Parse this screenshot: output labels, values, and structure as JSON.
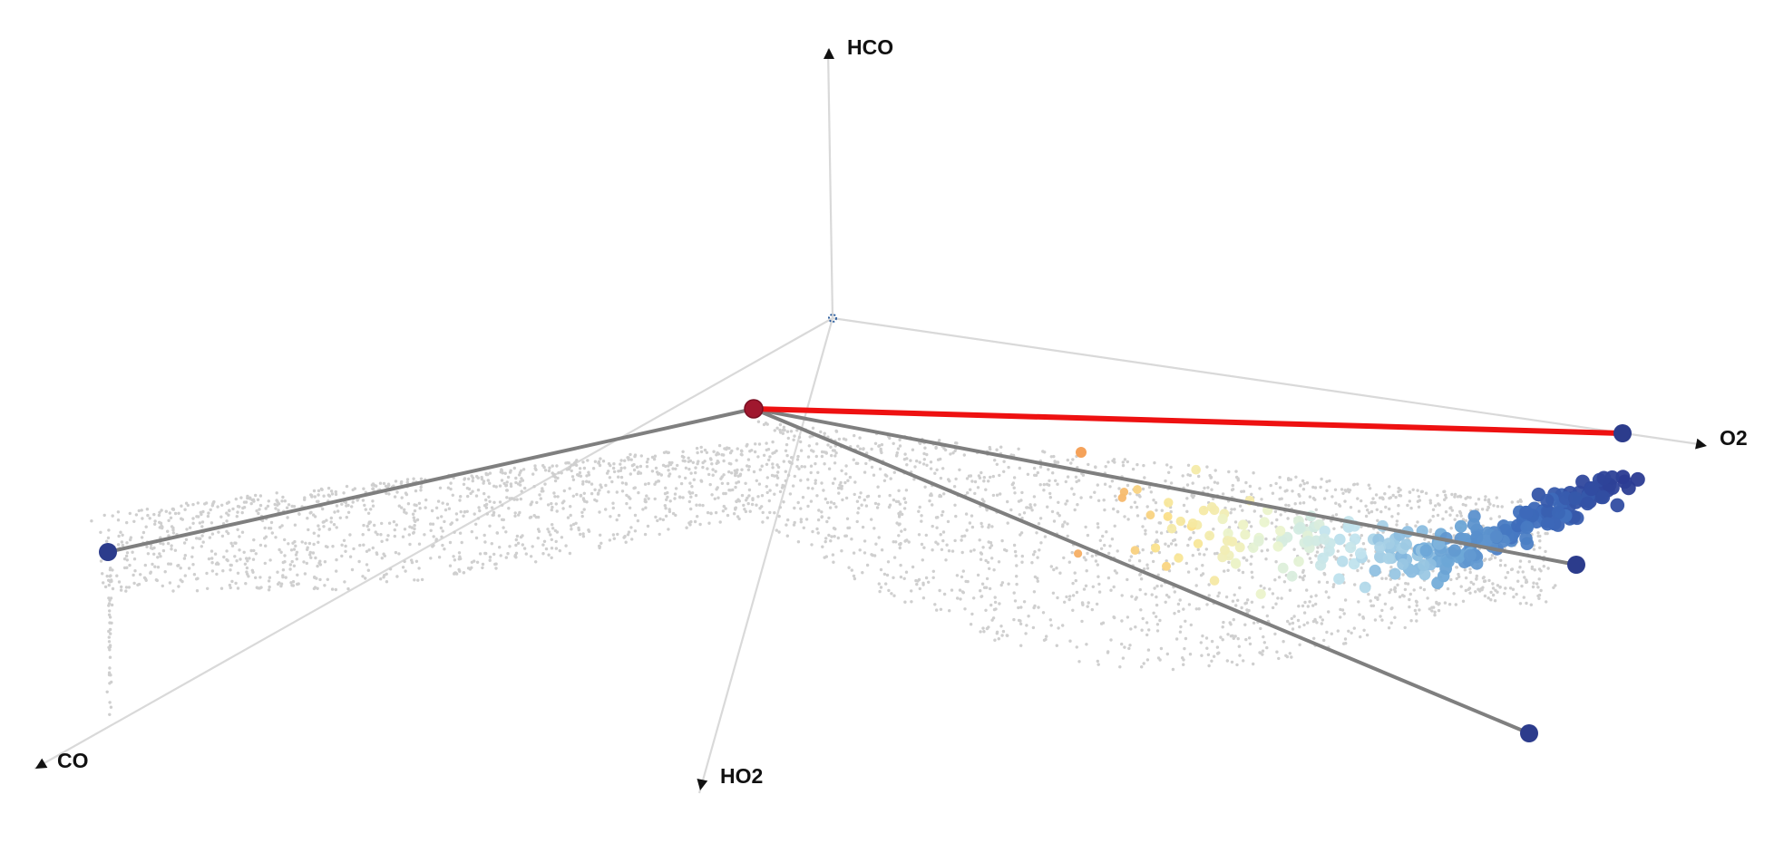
{
  "chart_data": {
    "type": "scatter",
    "projection": "3d",
    "title": "",
    "axes": [
      {
        "name": "HCO",
        "direction": "up"
      },
      {
        "name": "O2",
        "direction": "right"
      },
      {
        "name": "CO",
        "direction": "lower-left"
      },
      {
        "name": "HO2",
        "direction": "down"
      }
    ],
    "origin_marker_color": "#2f5f9e",
    "colors": {
      "axis_line": "#d9d9d9",
      "background_points": "#cfcfcf",
      "connector": "#7f7f7f",
      "highlight_edge": "#ee1111",
      "hub_node": "#a0172e",
      "end_node": "#2c3c8c",
      "colormap": [
        "#f5a25a",
        "#fbe48e",
        "#eaf4d0",
        "#c2e4ee",
        "#6fa9d8",
        "#3f6fbe",
        "#2b3b92"
      ]
    },
    "hub_node": {
      "label": "hub",
      "color": "#a0172e"
    },
    "end_nodes": [
      {
        "id": "co-end",
        "color": "#2c3c8c"
      },
      {
        "id": "o2-end",
        "color": "#2c3c8c"
      },
      {
        "id": "mid-end",
        "color": "#2c3c8c"
      },
      {
        "id": "ho2-end",
        "color": "#2c3c8c"
      }
    ],
    "highlighted_edge": {
      "from": "hub",
      "to": "o2-end",
      "color": "#ee1111"
    },
    "point_cloud": {
      "color": "#cfcfcf",
      "size": "small"
    },
    "colored_trajectory": {
      "colormap": "orange-yellow-lightblue-darkblue",
      "end": "o2-end"
    }
  }
}
